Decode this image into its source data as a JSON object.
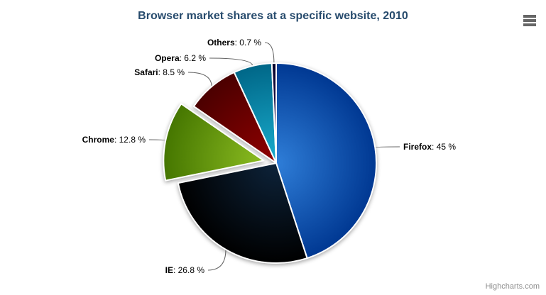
{
  "chart": {
    "credits": "Highcharts.com",
    "background_color": "#ffffff",
    "title_color": "#274b6d",
    "connector_color": "#606060",
    "icons": {
      "context_menu": "hamburger-icon"
    }
  },
  "chart_data": {
    "type": "pie",
    "title": "Browser market shares at a specific website, 2010",
    "legend": "none",
    "start_angle_deg": 0,
    "direction": "clockwise",
    "unit": "%",
    "points": [
      {
        "name": "Firefox",
        "y": 45,
        "value_label": "45 %",
        "color": "#2f7ed8",
        "sliced": false
      },
      {
        "name": "IE",
        "y": 26.8,
        "value_label": "26.8 %",
        "color": "#0d233a",
        "sliced": false
      },
      {
        "name": "Chrome",
        "y": 12.8,
        "value_label": "12.8 %",
        "color": "#8bbc21",
        "sliced": true
      },
      {
        "name": "Safari",
        "y": 8.5,
        "value_label": "8.5 %",
        "color": "#910000",
        "sliced": false
      },
      {
        "name": "Opera",
        "y": 6.2,
        "value_label": "6.2 %",
        "color": "#1aadce",
        "sliced": false
      },
      {
        "name": "Others",
        "y": 0.7,
        "value_label": "0.7 %",
        "color": "#492970",
        "sliced": false
      }
    ]
  }
}
